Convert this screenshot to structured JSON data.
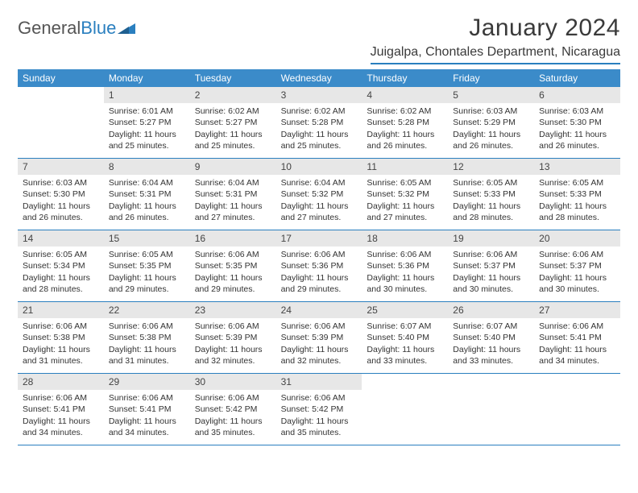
{
  "logo": {
    "text1": "General",
    "text2": "Blue"
  },
  "title": "January 2024",
  "location": "Juigalpa, Chontales Department, Nicaragua",
  "colors": {
    "header_bar": "#3b8bc9",
    "accent_line": "#2a7fbf",
    "daynum_bg": "#e7e7e7",
    "text": "#333333",
    "logo_gray": "#555555",
    "logo_blue": "#2a7fbf",
    "background": "#ffffff"
  },
  "font": {
    "title_size": 30,
    "location_size": 16,
    "weekday_size": 12,
    "body_size": 10.5
  },
  "weekdays": [
    "Sunday",
    "Monday",
    "Tuesday",
    "Wednesday",
    "Thursday",
    "Friday",
    "Saturday"
  ],
  "weeks": [
    [
      {
        "n": "",
        "sr": "",
        "ss": "",
        "dl1": "",
        "dl2": ""
      },
      {
        "n": "1",
        "sr": "Sunrise: 6:01 AM",
        "ss": "Sunset: 5:27 PM",
        "dl1": "Daylight: 11 hours",
        "dl2": "and 25 minutes."
      },
      {
        "n": "2",
        "sr": "Sunrise: 6:02 AM",
        "ss": "Sunset: 5:27 PM",
        "dl1": "Daylight: 11 hours",
        "dl2": "and 25 minutes."
      },
      {
        "n": "3",
        "sr": "Sunrise: 6:02 AM",
        "ss": "Sunset: 5:28 PM",
        "dl1": "Daylight: 11 hours",
        "dl2": "and 25 minutes."
      },
      {
        "n": "4",
        "sr": "Sunrise: 6:02 AM",
        "ss": "Sunset: 5:28 PM",
        "dl1": "Daylight: 11 hours",
        "dl2": "and 26 minutes."
      },
      {
        "n": "5",
        "sr": "Sunrise: 6:03 AM",
        "ss": "Sunset: 5:29 PM",
        "dl1": "Daylight: 11 hours",
        "dl2": "and 26 minutes."
      },
      {
        "n": "6",
        "sr": "Sunrise: 6:03 AM",
        "ss": "Sunset: 5:30 PM",
        "dl1": "Daylight: 11 hours",
        "dl2": "and 26 minutes."
      }
    ],
    [
      {
        "n": "7",
        "sr": "Sunrise: 6:03 AM",
        "ss": "Sunset: 5:30 PM",
        "dl1": "Daylight: 11 hours",
        "dl2": "and 26 minutes."
      },
      {
        "n": "8",
        "sr": "Sunrise: 6:04 AM",
        "ss": "Sunset: 5:31 PM",
        "dl1": "Daylight: 11 hours",
        "dl2": "and 26 minutes."
      },
      {
        "n": "9",
        "sr": "Sunrise: 6:04 AM",
        "ss": "Sunset: 5:31 PM",
        "dl1": "Daylight: 11 hours",
        "dl2": "and 27 minutes."
      },
      {
        "n": "10",
        "sr": "Sunrise: 6:04 AM",
        "ss": "Sunset: 5:32 PM",
        "dl1": "Daylight: 11 hours",
        "dl2": "and 27 minutes."
      },
      {
        "n": "11",
        "sr": "Sunrise: 6:05 AM",
        "ss": "Sunset: 5:32 PM",
        "dl1": "Daylight: 11 hours",
        "dl2": "and 27 minutes."
      },
      {
        "n": "12",
        "sr": "Sunrise: 6:05 AM",
        "ss": "Sunset: 5:33 PM",
        "dl1": "Daylight: 11 hours",
        "dl2": "and 28 minutes."
      },
      {
        "n": "13",
        "sr": "Sunrise: 6:05 AM",
        "ss": "Sunset: 5:33 PM",
        "dl1": "Daylight: 11 hours",
        "dl2": "and 28 minutes."
      }
    ],
    [
      {
        "n": "14",
        "sr": "Sunrise: 6:05 AM",
        "ss": "Sunset: 5:34 PM",
        "dl1": "Daylight: 11 hours",
        "dl2": "and 28 minutes."
      },
      {
        "n": "15",
        "sr": "Sunrise: 6:05 AM",
        "ss": "Sunset: 5:35 PM",
        "dl1": "Daylight: 11 hours",
        "dl2": "and 29 minutes."
      },
      {
        "n": "16",
        "sr": "Sunrise: 6:06 AM",
        "ss": "Sunset: 5:35 PM",
        "dl1": "Daylight: 11 hours",
        "dl2": "and 29 minutes."
      },
      {
        "n": "17",
        "sr": "Sunrise: 6:06 AM",
        "ss": "Sunset: 5:36 PM",
        "dl1": "Daylight: 11 hours",
        "dl2": "and 29 minutes."
      },
      {
        "n": "18",
        "sr": "Sunrise: 6:06 AM",
        "ss": "Sunset: 5:36 PM",
        "dl1": "Daylight: 11 hours",
        "dl2": "and 30 minutes."
      },
      {
        "n": "19",
        "sr": "Sunrise: 6:06 AM",
        "ss": "Sunset: 5:37 PM",
        "dl1": "Daylight: 11 hours",
        "dl2": "and 30 minutes."
      },
      {
        "n": "20",
        "sr": "Sunrise: 6:06 AM",
        "ss": "Sunset: 5:37 PM",
        "dl1": "Daylight: 11 hours",
        "dl2": "and 30 minutes."
      }
    ],
    [
      {
        "n": "21",
        "sr": "Sunrise: 6:06 AM",
        "ss": "Sunset: 5:38 PM",
        "dl1": "Daylight: 11 hours",
        "dl2": "and 31 minutes."
      },
      {
        "n": "22",
        "sr": "Sunrise: 6:06 AM",
        "ss": "Sunset: 5:38 PM",
        "dl1": "Daylight: 11 hours",
        "dl2": "and 31 minutes."
      },
      {
        "n": "23",
        "sr": "Sunrise: 6:06 AM",
        "ss": "Sunset: 5:39 PM",
        "dl1": "Daylight: 11 hours",
        "dl2": "and 32 minutes."
      },
      {
        "n": "24",
        "sr": "Sunrise: 6:06 AM",
        "ss": "Sunset: 5:39 PM",
        "dl1": "Daylight: 11 hours",
        "dl2": "and 32 minutes."
      },
      {
        "n": "25",
        "sr": "Sunrise: 6:07 AM",
        "ss": "Sunset: 5:40 PM",
        "dl1": "Daylight: 11 hours",
        "dl2": "and 33 minutes."
      },
      {
        "n": "26",
        "sr": "Sunrise: 6:07 AM",
        "ss": "Sunset: 5:40 PM",
        "dl1": "Daylight: 11 hours",
        "dl2": "and 33 minutes."
      },
      {
        "n": "27",
        "sr": "Sunrise: 6:06 AM",
        "ss": "Sunset: 5:41 PM",
        "dl1": "Daylight: 11 hours",
        "dl2": "and 34 minutes."
      }
    ],
    [
      {
        "n": "28",
        "sr": "Sunrise: 6:06 AM",
        "ss": "Sunset: 5:41 PM",
        "dl1": "Daylight: 11 hours",
        "dl2": "and 34 minutes."
      },
      {
        "n": "29",
        "sr": "Sunrise: 6:06 AM",
        "ss": "Sunset: 5:41 PM",
        "dl1": "Daylight: 11 hours",
        "dl2": "and 34 minutes."
      },
      {
        "n": "30",
        "sr": "Sunrise: 6:06 AM",
        "ss": "Sunset: 5:42 PM",
        "dl1": "Daylight: 11 hours",
        "dl2": "and 35 minutes."
      },
      {
        "n": "31",
        "sr": "Sunrise: 6:06 AM",
        "ss": "Sunset: 5:42 PM",
        "dl1": "Daylight: 11 hours",
        "dl2": "and 35 minutes."
      },
      {
        "n": "",
        "sr": "",
        "ss": "",
        "dl1": "",
        "dl2": ""
      },
      {
        "n": "",
        "sr": "",
        "ss": "",
        "dl1": "",
        "dl2": ""
      },
      {
        "n": "",
        "sr": "",
        "ss": "",
        "dl1": "",
        "dl2": ""
      }
    ]
  ]
}
